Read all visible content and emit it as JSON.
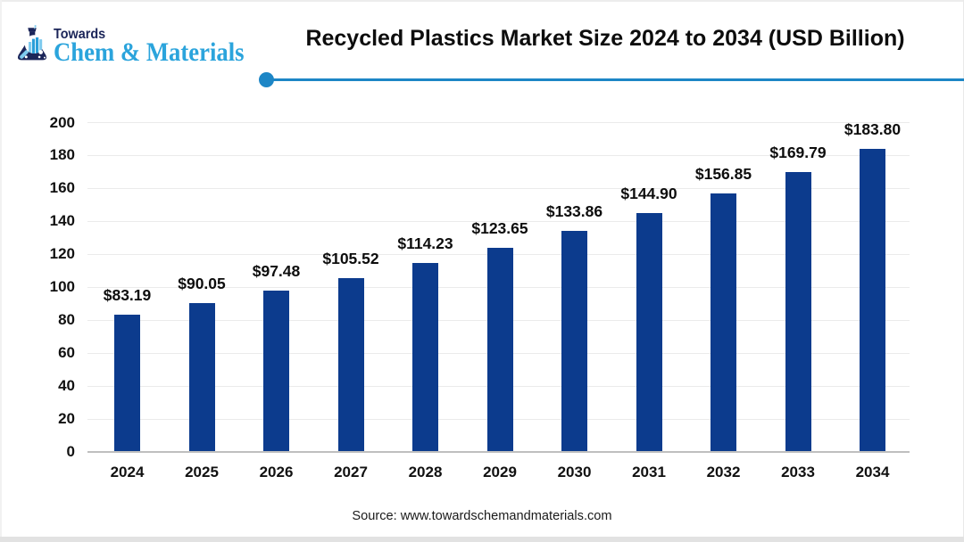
{
  "logo": {
    "line1": "Towards",
    "line2": "Chem & Materials",
    "icon": "flask-with-chart-magnifier",
    "colors": {
      "navy": "#1b2559",
      "blue": "#2ba4dc",
      "light_blue": "#7ecaee"
    }
  },
  "source": {
    "text": "Source: www.towardschemandmaterials.com"
  },
  "chart_data": {
    "type": "bar",
    "title": "Recycled Plastics Market Size 2024 to 2034 (USD Billion)",
    "categories": [
      "2024",
      "2025",
      "2026",
      "2027",
      "2028",
      "2029",
      "2030",
      "2031",
      "2032",
      "2033",
      "2034"
    ],
    "values": [
      83.19,
      90.05,
      97.48,
      105.52,
      114.23,
      123.65,
      133.86,
      144.9,
      156.85,
      169.79,
      183.8
    ],
    "value_labels": [
      "$83.19",
      "$90.05",
      "$97.48",
      "$105.52",
      "$114.23",
      "$123.65",
      "$133.86",
      "$144.90",
      "$156.85",
      "$169.79",
      "$183.80"
    ],
    "xlabel": "",
    "ylabel": "",
    "ylim": [
      0,
      200
    ],
    "ytick_step": 20,
    "grid": true,
    "legend": false,
    "bar_color": "#0c3b8d",
    "grid_color": "#ebebeb",
    "axis_color": "#bfbfbf"
  },
  "accent": {
    "line_color": "#1d86c6",
    "dot_color": "#1d86c6"
  },
  "bottom_band_color": "#e2e2e2"
}
